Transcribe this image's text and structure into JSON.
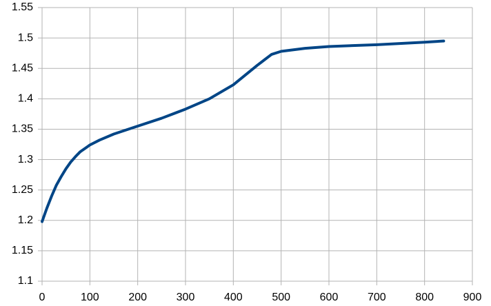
{
  "chart_data": {
    "type": "line",
    "x": [
      0,
      10,
      20,
      30,
      40,
      50,
      60,
      70,
      80,
      100,
      120,
      150,
      200,
      250,
      300,
      350,
      400,
      450,
      480,
      500,
      550,
      600,
      700,
      800,
      840
    ],
    "series": [
      {
        "color": "#004586",
        "values": [
          1.198,
          1.22,
          1.24,
          1.258,
          1.272,
          1.285,
          1.296,
          1.305,
          1.313,
          1.324,
          1.332,
          1.342,
          1.355,
          1.368,
          1.383,
          1.4,
          1.423,
          1.455,
          1.473,
          1.478,
          1.483,
          1.486,
          1.489,
          1.493,
          1.495
        ]
      }
    ],
    "xlim": [
      0,
      900
    ],
    "xticks": [
      0,
      100,
      200,
      300,
      400,
      500,
      600,
      700,
      800,
      900
    ],
    "ylim": [
      1.1,
      1.55
    ],
    "yticks": [
      1.1,
      1.15,
      1.2,
      1.25,
      1.3,
      1.35,
      1.4,
      1.45,
      1.5,
      1.55
    ],
    "grid": true
  }
}
